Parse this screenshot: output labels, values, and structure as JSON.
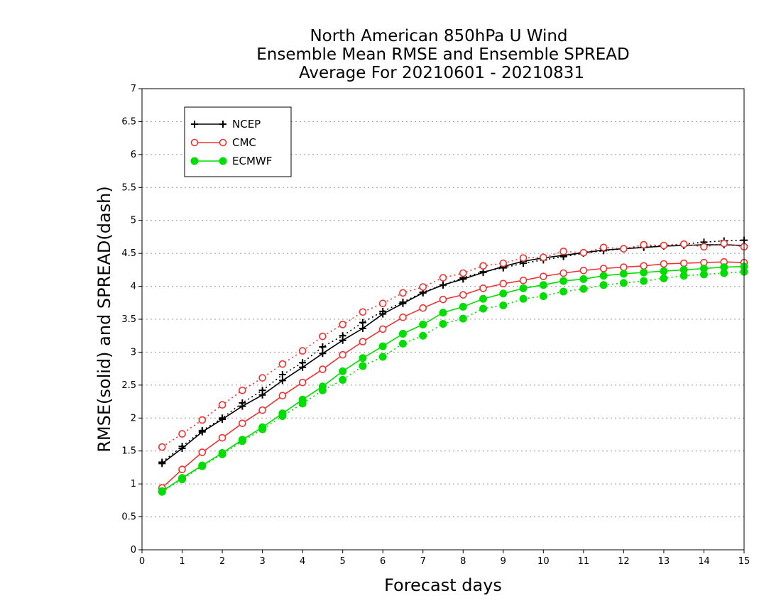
{
  "chart_data": {
    "type": "line",
    "title_lines": [
      "North American 850hPa U Wind",
      "Ensemble Mean RMSE and Ensemble SPREAD",
      "Average For 20210601 - 20210831"
    ],
    "xlabel": "Forecast days",
    "ylabel": "RMSE(solid) and SPREAD(dash)",
    "xlim": [
      0,
      15
    ],
    "ylim": [
      0,
      7
    ],
    "x_ticks": [
      "0",
      "1",
      "2",
      "3",
      "4",
      "5",
      "6",
      "7",
      "8",
      "9",
      "10",
      "11",
      "12",
      "13",
      "14",
      "15"
    ],
    "y_ticks": [
      "0",
      "0.5",
      "1",
      "1.5",
      "2",
      "2.5",
      "3",
      "3.5",
      "4",
      "4.5",
      "5",
      "5.5",
      "6",
      "6.5",
      "7"
    ],
    "grid": "horizontal dotted",
    "legend_position": "top-left",
    "x": [
      0.5,
      1,
      1.5,
      2,
      2.5,
      3,
      3.5,
      4,
      4.5,
      5,
      5.5,
      6,
      6.5,
      7,
      7.5,
      8,
      8.5,
      9,
      9.5,
      10,
      10.5,
      11,
      11.5,
      12,
      12.5,
      13,
      13.5,
      14,
      14.5,
      15
    ],
    "series": [
      {
        "name": "NCEP",
        "color": "#000000",
        "marker": "plus",
        "rmse": [
          1.31,
          1.54,
          1.79,
          1.98,
          2.18,
          2.35,
          2.57,
          2.77,
          2.98,
          3.18,
          3.36,
          3.58,
          3.74,
          3.9,
          4.02,
          4.11,
          4.21,
          4.3,
          4.38,
          4.43,
          4.47,
          4.51,
          4.55,
          4.57,
          4.59,
          4.61,
          4.62,
          4.63,
          4.63,
          4.62
        ],
        "spread": [
          1.33,
          1.57,
          1.81,
          2.0,
          2.23,
          2.42,
          2.66,
          2.84,
          3.08,
          3.25,
          3.45,
          3.62,
          3.76,
          3.91,
          4.02,
          4.13,
          4.22,
          4.28,
          4.35,
          4.4,
          4.45,
          4.5,
          4.54,
          4.57,
          4.6,
          4.62,
          4.64,
          4.67,
          4.69,
          4.7
        ]
      },
      {
        "name": "CMC",
        "color": "#ee3333",
        "marker": "open-circle",
        "rmse": [
          0.94,
          1.22,
          1.48,
          1.7,
          1.92,
          2.12,
          2.34,
          2.54,
          2.74,
          2.96,
          3.16,
          3.35,
          3.53,
          3.67,
          3.8,
          3.87,
          3.97,
          4.04,
          4.09,
          4.15,
          4.2,
          4.24,
          4.27,
          4.29,
          4.31,
          4.34,
          4.35,
          4.36,
          4.37,
          4.36
        ],
        "spread": [
          1.56,
          1.76,
          1.97,
          2.2,
          2.42,
          2.61,
          2.82,
          3.02,
          3.24,
          3.42,
          3.61,
          3.74,
          3.9,
          3.99,
          4.13,
          4.2,
          4.31,
          4.35,
          4.43,
          4.44,
          4.53,
          4.51,
          4.59,
          4.57,
          4.63,
          4.62,
          4.64,
          4.6,
          4.65,
          4.6
        ]
      },
      {
        "name": "ECMWF",
        "color": "#00dd00",
        "marker": "filled-circle",
        "rmse": [
          0.89,
          1.09,
          1.28,
          1.47,
          1.67,
          1.86,
          2.07,
          2.28,
          2.48,
          2.71,
          2.91,
          3.09,
          3.28,
          3.42,
          3.6,
          3.69,
          3.81,
          3.89,
          3.97,
          4.02,
          4.08,
          4.11,
          4.16,
          4.19,
          4.21,
          4.23,
          4.25,
          4.27,
          4.29,
          4.3
        ],
        "spread": [
          0.88,
          1.07,
          1.27,
          1.45,
          1.65,
          1.83,
          2.03,
          2.22,
          2.42,
          2.58,
          2.79,
          2.93,
          3.13,
          3.25,
          3.43,
          3.51,
          3.66,
          3.71,
          3.81,
          3.85,
          3.92,
          3.96,
          4.02,
          4.05,
          4.08,
          4.12,
          4.16,
          4.18,
          4.2,
          4.22
        ]
      }
    ]
  }
}
